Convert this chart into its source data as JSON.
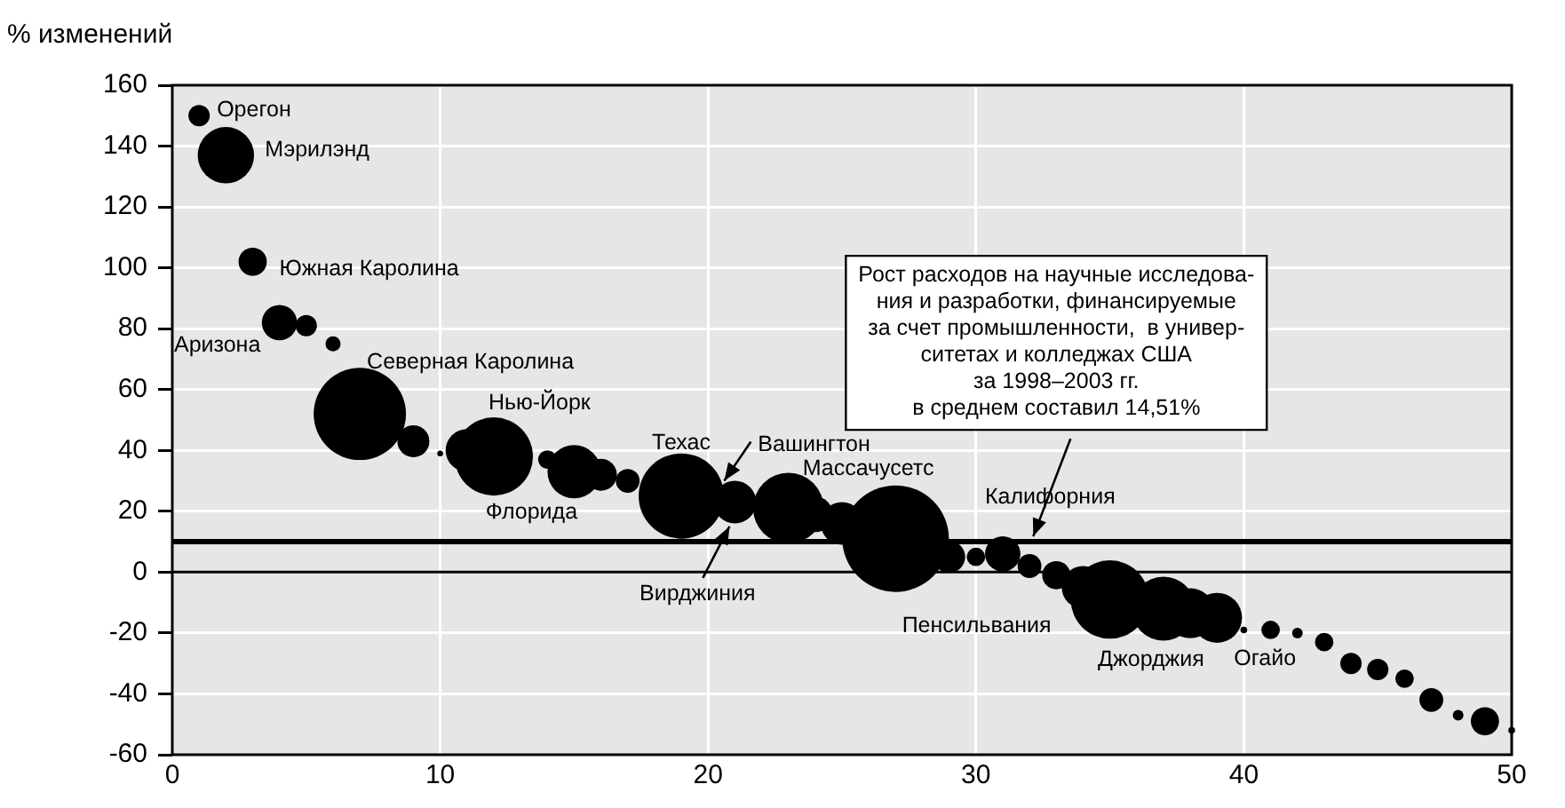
{
  "chart_data": {
    "type": "bubble",
    "ylabel": "% изменений",
    "xlim": [
      0,
      50
    ],
    "ylim": [
      -60,
      160
    ],
    "xticks": [
      0,
      10,
      20,
      30,
      40,
      50
    ],
    "yticks": [
      -60,
      -40,
      -20,
      0,
      20,
      40,
      60,
      80,
      100,
      120,
      140,
      160
    ],
    "grid": true,
    "color": "#000000",
    "x": [
      1,
      2,
      3,
      4,
      5,
      6,
      7,
      8,
      9,
      10,
      11,
      12,
      13,
      14,
      15,
      16,
      17,
      18,
      19,
      20,
      21,
      22,
      23,
      24,
      25,
      26,
      27,
      28,
      29,
      30,
      31,
      32,
      33,
      34,
      35,
      36,
      37,
      38,
      39,
      40,
      41,
      42,
      43,
      44,
      45,
      46,
      47,
      48,
      49,
      50
    ],
    "values": [
      150,
      137,
      102,
      82,
      81,
      75,
      52,
      null,
      43,
      39,
      40,
      38,
      null,
      37,
      33,
      32,
      30,
      null,
      25,
      null,
      23,
      null,
      21,
      19,
      16,
      null,
      11,
      null,
      5,
      5,
      6,
      2,
      -1,
      -5,
      -9,
      null,
      -12,
      -13.5,
      -15,
      -19,
      -19,
      -20,
      -23,
      -30,
      -32,
      -35,
      -42,
      -47,
      -49,
      -52
    ],
    "sizes": [
      0.04,
      0.28,
      0.07,
      0.11,
      0.04,
      0.02,
      0.75,
      null,
      0.09,
      0.003,
      0.16,
      0.54,
      null,
      0.03,
      0.25,
      0.09,
      0.05,
      null,
      0.64,
      null,
      0.16,
      null,
      0.44,
      0.11,
      0.16,
      null,
      1,
      null,
      0.09,
      0.03,
      0.11,
      0.05,
      0.07,
      0.16,
      0.54,
      null,
      0.36,
      0.22,
      0.22,
      0.004,
      0.03,
      0.01,
      0.03,
      0.04,
      0.04,
      0.03,
      0.05,
      0.01,
      0.07,
      0.004
    ],
    "ref_lines": [
      {
        "axis": "y",
        "value": 10,
        "label": "Рост расходов на научные исследова-\nния и разработки, финансируемые\nза счет промышленности,  в универ-\nситетах и колледжах США\nза 1998–2003 гг.\nв среднем составил 14,51%"
      },
      {
        "axis": "y",
        "value": 0
      }
    ],
    "annotations": [
      {
        "text": "Орегон",
        "x": 1,
        "y": 150
      },
      {
        "text": "Мэрилэнд",
        "x": 2,
        "y": 137
      },
      {
        "text": "Южная Каролина",
        "x": 3,
        "y": 102
      },
      {
        "text": "Аризона",
        "x": 4,
        "y": 82
      },
      {
        "text": "Северная Каролина",
        "x": 7,
        "y": 52
      },
      {
        "text": "Нью-Йорк",
        "x": 12,
        "y": 38
      },
      {
        "text": "Флорида",
        "x": 15,
        "y": 33
      },
      {
        "text": "Техас",
        "x": 19,
        "y": 25
      },
      {
        "text": "Вашингтон",
        "x": 21,
        "y": 23
      },
      {
        "text": "Вирджиния",
        "x": 20.8,
        "y": 15
      },
      {
        "text": "Массачусетс",
        "x": 23,
        "y": 21
      },
      {
        "text": "Калифорния",
        "x": 31,
        "y": 6
      },
      {
        "text": "Пенсильвания",
        "x": 35,
        "y": -9
      },
      {
        "text": "Джорджия",
        "x": 37,
        "y": -12
      },
      {
        "text": "Огайо",
        "x": 39,
        "y": -15
      }
    ]
  }
}
